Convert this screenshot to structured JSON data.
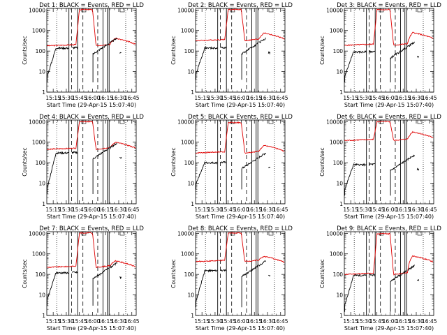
{
  "figure": {
    "panel_titles": [
      "Det  1: BLACK = Events, RED = LLD",
      "Det  2: BLACK = Events, RED = LLD",
      "Det  3: BLACK = Events, RED = LLD",
      "Det  4: BLACK = Events, RED = LLD",
      "Det  5: BLACK = Events, RED = LLD",
      "Det  6: BLACK = Events, RED = LLD",
      "Det  7: BLACK = Events, RED = LLD",
      "Det  8: BLACK = Events, RED = LLD",
      "Det  9: BLACK = Events, RED = LLD"
    ],
    "ylabel": "Counts/sec",
    "xlabel": "Start Time (29-Apr-15 15:07:40)"
  },
  "chart_data": {
    "type": "line",
    "x_ticks": [
      "15:15",
      "15:30",
      "15:45",
      "16:00",
      "16:15",
      "16:30",
      "16:45"
    ],
    "x_tick_minutes": [
      15,
      30,
      45,
      60,
      75,
      90,
      105
    ],
    "x_range_minutes": [
      7.67,
      110
    ],
    "y_scale": "log",
    "y_range": [
      1,
      12000
    ],
    "y_ticks": [
      1,
      10,
      100,
      1000,
      10000
    ],
    "y_tick_labels": [
      "1",
      "10",
      "100",
      "1000",
      "10000"
    ],
    "grid": false,
    "colors": {
      "events": "#000000",
      "lld": "#e00000"
    },
    "series_names": [
      "Events",
      "LLD"
    ],
    "dotted_markers_minutes": [
      19,
      98
    ],
    "dashed_markers_minutes": [
      36,
      49,
      66
    ],
    "solid_markers_minutes": [
      33,
      43,
      72,
      77,
      79
    ],
    "saturation_window_minutes": [
      44,
      60
    ],
    "panels": [
      {
        "events_base": 140,
        "events_start": 6,
        "lld_base": 180,
        "lld_peak": 10500,
        "lld_end": 210
      },
      {
        "events_base": 140,
        "events_start": 8,
        "lld_base": 320,
        "lld_peak": 10500,
        "lld_end": 380
      },
      {
        "events_base": 90,
        "events_start": 6,
        "lld_base": 190,
        "lld_peak": 10500,
        "lld_end": 400
      },
      {
        "events_base": 300,
        "events_start": 6,
        "lld_base": 450,
        "lld_peak": 10000,
        "lld_end": 500
      },
      {
        "events_base": 100,
        "events_start": 10,
        "lld_base": 300,
        "lld_peak": 9000,
        "lld_end": 350
      },
      {
        "events_base": 80,
        "events_start": 5,
        "lld_base": 1200,
        "lld_peak": 10000,
        "lld_end": 1600
      },
      {
        "events_base": 120,
        "events_start": 6,
        "lld_base": 220,
        "lld_peak": 10500,
        "lld_end": 230
      },
      {
        "events_base": 150,
        "events_start": 5,
        "lld_base": 420,
        "lld_peak": 10500,
        "lld_end": 380
      },
      {
        "events_base": 90,
        "events_start": 3,
        "lld_base": 100,
        "lld_peak": 9500,
        "lld_end": 400
      }
    ]
  }
}
